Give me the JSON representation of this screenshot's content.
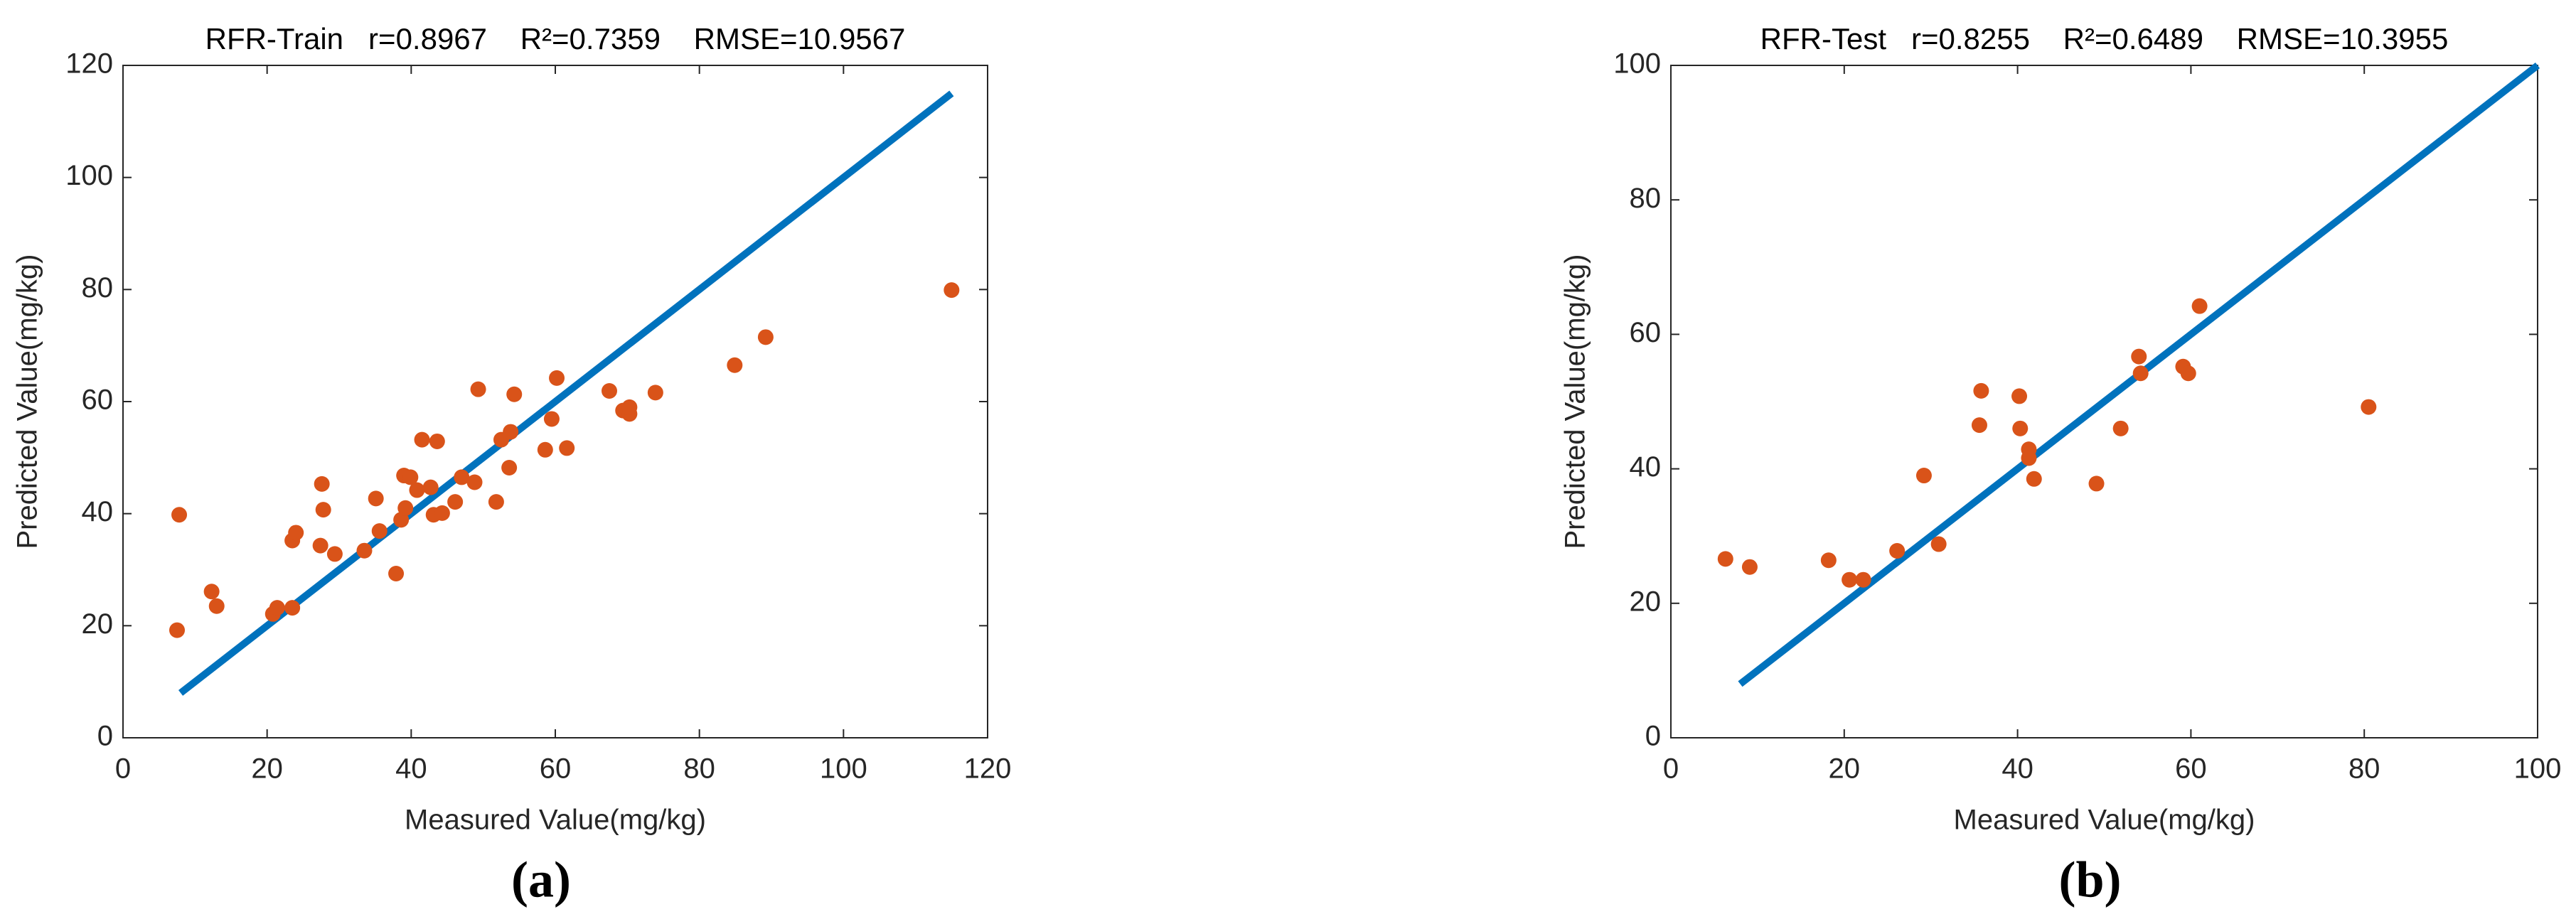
{
  "chart_data": [
    {
      "type": "scatter",
      "title": "RFR-Train   r=0.8967    R²=0.7359    RMSE=10.9567",
      "x_label": "Measured Value(mg/kg)",
      "y_label": "Predicted Value(mg/kg)",
      "panel_label": "(a)",
      "xlim": [
        0,
        120
      ],
      "ylim": [
        0,
        120
      ],
      "xticks": [
        0,
        20,
        40,
        60,
        80,
        100,
        120
      ],
      "yticks": [
        0,
        20,
        40,
        60,
        80,
        100,
        120
      ],
      "series": [
        {
          "type": "scatter",
          "color": "#d95319",
          "x": [
            7.8,
            7.5,
            12.3,
            13.0,
            20.8,
            21.4,
            23.5,
            23.5,
            24.0,
            27.6,
            27.8,
            27.4,
            29.4,
            33.5,
            35.1,
            35.6,
            37.9,
            38.6,
            39.0,
            39.9,
            39.2,
            40.8,
            41.5,
            42.7,
            43.1,
            44.3,
            43.6,
            46.1,
            47.0,
            48.8,
            49.3,
            51.8,
            52.5,
            53.6,
            53.8,
            54.3,
            60.2,
            59.5,
            58.6,
            61.6,
            67.5,
            69.4,
            70.3,
            70.3,
            73.9,
            84.9,
            89.2,
            115.0
          ],
          "values": [
            39.8,
            19.2,
            26.1,
            23.5,
            22.1,
            23.2,
            23.2,
            35.2,
            36.6,
            45.3,
            40.7,
            34.3,
            32.8,
            33.4,
            42.7,
            36.9,
            29.3,
            38.9,
            46.8,
            46.5,
            41.0,
            44.2,
            53.2,
            44.7,
            39.8,
            40.1,
            52.9,
            42.1,
            46.5,
            45.6,
            62.2,
            42.1,
            53.2,
            48.2,
            54.6,
            61.3,
            64.2,
            56.9,
            51.4,
            51.7,
            61.9,
            58.4,
            57.8,
            59.0,
            61.6,
            66.5,
            71.5,
            79.9
          ]
        },
        {
          "type": "line",
          "color": "#0072bd",
          "x": [
            8,
            115
          ],
          "values": [
            8,
            115
          ]
        }
      ]
    },
    {
      "type": "scatter",
      "title": "RFR-Test   r=0.8255    R²=0.6489    RMSE=10.3955",
      "x_label": "Measured Value(mg/kg)",
      "y_label": "Predicted Value(mg/kg)",
      "panel_label": "(b)",
      "xlim": [
        0,
        100
      ],
      "ylim": [
        0,
        100
      ],
      "xticks": [
        0,
        20,
        40,
        60,
        80,
        100
      ],
      "yticks": [
        0,
        20,
        40,
        60,
        80,
        100
      ],
      "series": [
        {
          "type": "scatter",
          "color": "#d95319",
          "x": [
            6.3,
            9.1,
            18.2,
            20.6,
            22.2,
            26.1,
            29.2,
            30.9,
            35.6,
            35.8,
            40.2,
            40.3,
            41.3,
            41.3,
            41.9,
            49.1,
            51.9,
            54.0,
            54.2,
            59.1,
            59.7,
            61.0,
            80.5
          ],
          "values": [
            26.6,
            25.4,
            26.4,
            23.5,
            23.5,
            27.8,
            39.0,
            28.8,
            46.5,
            51.6,
            50.8,
            46.0,
            42.9,
            41.6,
            38.5,
            37.8,
            46.0,
            56.7,
            54.2,
            55.2,
            54.2,
            64.2,
            49.2
          ]
        },
        {
          "type": "line",
          "color": "#0072bd",
          "x": [
            8,
            100
          ],
          "values": [
            8,
            100
          ]
        }
      ]
    }
  ]
}
